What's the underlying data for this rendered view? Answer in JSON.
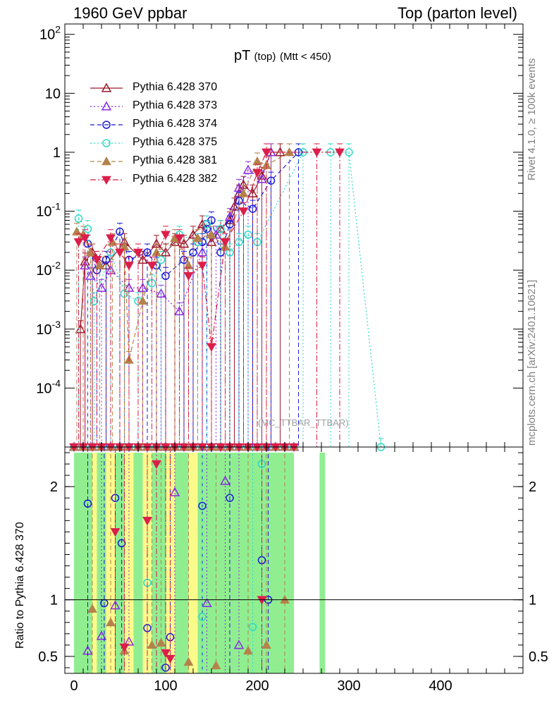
{
  "header": {
    "left": "1960 GeV ppbar",
    "right": "Top (parton level)"
  },
  "side_text": {
    "rivet": "Rivet 4.1.0, ≥ 100k events",
    "mcplots": "mcplots.cern.ch [arXiv:2401.10621]"
  },
  "watermark": "(MC_TTBAR_TTBAR)",
  "ratio_ylabel": "Ratio to Pythia 6.428 370",
  "colors": {
    "s370": "#9b1b2b",
    "s373": "#8a2be2",
    "s374": "#1a1ad6",
    "s375": "#30d8c8",
    "s381": "#b5824a",
    "s382": "#dc1e4a",
    "band_green": "#90ee90",
    "band_yellow": "#fbfb8c"
  },
  "chart_data": {
    "type": "line",
    "title": "pT",
    "title_sub": "(top)",
    "title_cond": "(Mtt < 450)",
    "xlabel": "",
    "ylabel": "",
    "xlim": [
      -10,
      490
    ],
    "ylim": [
      1e-05,
      150
    ],
    "yscale": "log",
    "x_ticks": [
      "0",
      "100",
      "200",
      "300",
      "400"
    ],
    "y_ticks": [
      "10^-4",
      "10^-3",
      "10^-2",
      "10^-1",
      "1",
      "10",
      "10^2"
    ],
    "ratio_ylim": [
      0.35,
      2.35
    ],
    "ratio_ticks": [
      "0.5",
      "1",
      "2"
    ],
    "legend_position": "top-left",
    "series": [
      {
        "name": "Pythia 6.428 370",
        "key": "s370",
        "marker": "triangle-up-open",
        "dash": "solid",
        "points": [
          [
            7,
            0.001
          ],
          [
            12,
            0.014
          ],
          [
            20,
            0.02
          ],
          [
            35,
            0.012
          ],
          [
            55,
            0.03
          ],
          [
            75,
            0.015
          ],
          [
            90,
            0.028
          ],
          [
            100,
            0.02
          ],
          [
            110,
            0.03
          ],
          [
            120,
            0.028
          ],
          [
            130,
            0.04
          ],
          [
            140,
            0.06
          ],
          [
            150,
            0.03
          ],
          [
            160,
            0.05
          ],
          [
            170,
            0.07
          ],
          [
            175,
            0.12
          ],
          [
            180,
            0.2
          ],
          [
            185,
            0.28
          ],
          [
            195,
            0.2
          ],
          [
            205,
            0.4
          ],
          [
            215,
            1.0
          ],
          [
            225,
            1.0
          ]
        ],
        "ratio": []
      },
      {
        "name": "Pythia 6.428 373",
        "key": "s373",
        "marker": "triangle-up-open",
        "dash": "dotted",
        "points": [
          [
            12,
            0.012
          ],
          [
            18,
            0.008
          ],
          [
            30,
            0.005
          ],
          [
            40,
            0.01
          ],
          [
            60,
            0.005
          ],
          [
            75,
            0.005
          ],
          [
            95,
            0.004
          ],
          [
            115,
            0.002
          ],
          [
            140,
            0.02
          ],
          [
            155,
            0.04
          ],
          [
            170,
            0.08
          ],
          [
            180,
            0.25
          ],
          [
            190,
            0.5
          ],
          [
            205,
            0.35
          ],
          [
            215,
            1.0
          ]
        ],
        "ratio": [
          [
            15,
            0.55
          ],
          [
            30,
            0.68
          ],
          [
            45,
            0.95
          ],
          [
            60,
            0.63
          ],
          [
            110,
            1.95
          ],
          [
            145,
            0.97
          ],
          [
            165,
            2.05
          ],
          [
            180,
            0.6
          ]
        ]
      },
      {
        "name": "Pythia 6.428 374",
        "key": "s374",
        "marker": "circle-open",
        "dash": "dashed",
        "points": [
          [
            15,
            0.028
          ],
          [
            25,
            0.01
          ],
          [
            35,
            0.015
          ],
          [
            50,
            0.045
          ],
          [
            60,
            0.015
          ],
          [
            80,
            0.02
          ],
          [
            90,
            0.012
          ],
          [
            100,
            0.008
          ],
          [
            120,
            0.015
          ],
          [
            130,
            0.02
          ],
          [
            140,
            0.03
          ],
          [
            145,
            0.05
          ],
          [
            150,
            0.07
          ],
          [
            160,
            0.02
          ],
          [
            170,
            0.06
          ],
          [
            180,
            0.15
          ],
          [
            195,
            0.11
          ],
          [
            215,
            0.33
          ],
          [
            245,
            1.0
          ]
        ],
        "ratio": [
          [
            15,
            1.85
          ],
          [
            33,
            0.97
          ],
          [
            45,
            1.9
          ],
          [
            52,
            1.5
          ],
          [
            80,
            0.75
          ],
          [
            100,
            0.4
          ],
          [
            105,
            0.67
          ],
          [
            140,
            1.83
          ],
          [
            170,
            1.9
          ],
          [
            205,
            1.35
          ],
          [
            212,
            1.0
          ]
        ]
      },
      {
        "name": "Pythia 6.428 375",
        "key": "s375",
        "marker": "circle-open",
        "dash": "dotted",
        "points": [
          [
            5,
            0.075
          ],
          [
            15,
            0.05
          ],
          [
            22,
            0.003
          ],
          [
            40,
            0.02
          ],
          [
            55,
            0.004
          ],
          [
            70,
            0.003
          ],
          [
            85,
            0.006
          ],
          [
            95,
            0.015
          ],
          [
            115,
            0.04
          ],
          [
            135,
            0.03
          ],
          [
            145,
            0.06
          ],
          [
            160,
            0.05
          ],
          [
            170,
            0.02
          ],
          [
            180,
            0.03
          ],
          [
            190,
            0.04
          ],
          [
            200,
            0.03
          ],
          [
            250,
            1.0
          ],
          [
            280,
            1.0
          ],
          [
            300,
            1.0
          ],
          [
            335,
            1e-05
          ]
        ],
        "ratio": [
          [
            80,
            1.15
          ],
          [
            140,
            0.85
          ],
          [
            195,
            0.76
          ],
          [
            205,
            2.2
          ]
        ]
      },
      {
        "name": "Pythia 6.428 381",
        "key": "s381",
        "marker": "triangle-up-filled",
        "dash": "dashed",
        "points": [
          [
            3,
            0.045
          ],
          [
            10,
            0.04
          ],
          [
            18,
            0.02
          ],
          [
            28,
            0.012
          ],
          [
            42,
            0.03
          ],
          [
            55,
            0.025
          ],
          [
            60,
            0.0003
          ],
          [
            75,
            0.003
          ],
          [
            90,
            0.02
          ],
          [
            110,
            0.035
          ],
          [
            125,
            0.012
          ],
          [
            135,
            0.035
          ],
          [
            150,
            0.04
          ],
          [
            165,
            0.025
          ],
          [
            185,
            0.2
          ],
          [
            200,
            0.7
          ],
          [
            210,
            0.6
          ],
          [
            235,
            1.0
          ]
        ],
        "ratio": [
          [
            20,
            0.92
          ],
          [
            40,
            0.8
          ],
          [
            55,
            0.55
          ],
          [
            85,
            0.6
          ],
          [
            95,
            0.62
          ],
          [
            125,
            0.45
          ],
          [
            155,
            0.42
          ],
          [
            190,
            0.55
          ],
          [
            210,
            0.6
          ],
          [
            230,
            1.0
          ]
        ]
      },
      {
        "name": "Pythia 6.428 382",
        "key": "s382",
        "marker": "triangle-down-filled",
        "dash": "dashdot",
        "points": [
          [
            5,
            0.03
          ],
          [
            12,
            0.035
          ],
          [
            25,
            0.015
          ],
          [
            40,
            0.035
          ],
          [
            50,
            0.02
          ],
          [
            60,
            0.012
          ],
          [
            70,
            0.02
          ],
          [
            85,
            0.012
          ],
          [
            100,
            0.04
          ],
          [
            115,
            0.035
          ],
          [
            125,
            0.008
          ],
          [
            140,
            0.012
          ],
          [
            150,
            0.0005
          ],
          [
            165,
            0.03
          ],
          [
            185,
            0.1
          ],
          [
            200,
            0.45
          ],
          [
            210,
            1.0
          ],
          [
            265,
            1.0
          ],
          [
            290,
            1.0
          ]
        ],
        "ratio": [
          [
            45,
            1.6
          ],
          [
            55,
            0.58
          ],
          [
            80,
            1.7
          ],
          [
            90,
            2.2
          ],
          [
            100,
            0.53
          ],
          [
            105,
            0.48
          ],
          [
            205,
            1.0
          ]
        ]
      }
    ],
    "ratio_band_green": [
      [
        0,
        10,
        2.3,
        0.35
      ],
      [
        10,
        20,
        2.3,
        0.35
      ],
      [
        25,
        35,
        2.3,
        0.35
      ],
      [
        45,
        55,
        2.3,
        0.35
      ],
      [
        65,
        75,
        2.3,
        0.35
      ],
      [
        85,
        100,
        2.3,
        0.35
      ],
      [
        110,
        125,
        2.3,
        0.35
      ],
      [
        135,
        200,
        2.3,
        0.35
      ],
      [
        200,
        240,
        2.3,
        0.35
      ],
      [
        268,
        274,
        2.3,
        0.35
      ]
    ],
    "ratio_band_yellow": [
      [
        0,
        240,
        2.3,
        0.35
      ]
    ]
  }
}
